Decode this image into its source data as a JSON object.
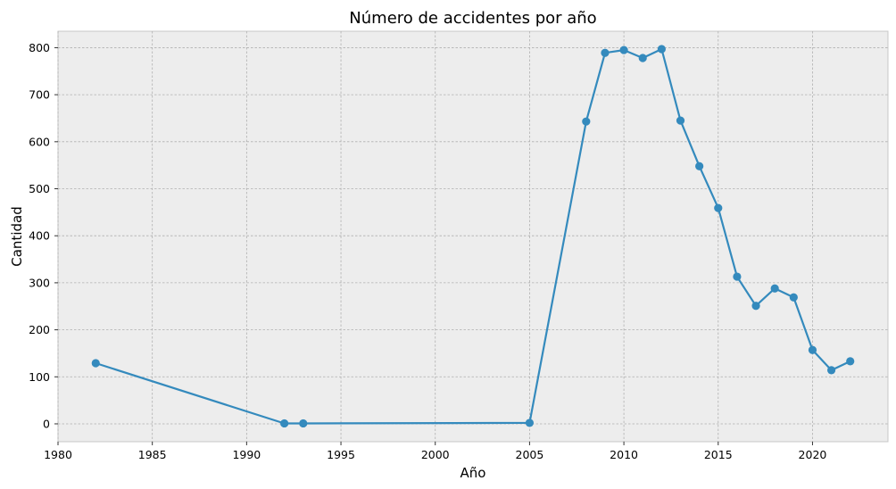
{
  "chart_data": {
    "type": "line",
    "title": "Número de accidentes por año",
    "xlabel": "Año",
    "ylabel": "Cantidad",
    "xlim": [
      1980,
      2024
    ],
    "ylim": [
      -38,
      835
    ],
    "xticks": [
      1980,
      1985,
      1990,
      1995,
      2000,
      2005,
      2010,
      2015,
      2020
    ],
    "yticks": [
      0,
      100,
      200,
      300,
      400,
      500,
      600,
      700,
      800
    ],
    "grid": true,
    "series": [
      {
        "x": [
          1982,
          1992,
          1993,
          2005,
          2008,
          2009,
          2010,
          2011,
          2012,
          2013,
          2014,
          2015,
          2016,
          2017,
          2018,
          2019,
          2020,
          2021,
          2022
        ],
        "y": [
          129,
          1,
          1,
          2,
          643,
          789,
          795,
          778,
          797,
          645,
          548,
          459,
          313,
          251,
          288,
          269,
          157,
          114,
          133
        ]
      }
    ],
    "colors": {
      "line": "#348abd",
      "background": "#ededed",
      "grid": "#b0b0b0"
    }
  }
}
